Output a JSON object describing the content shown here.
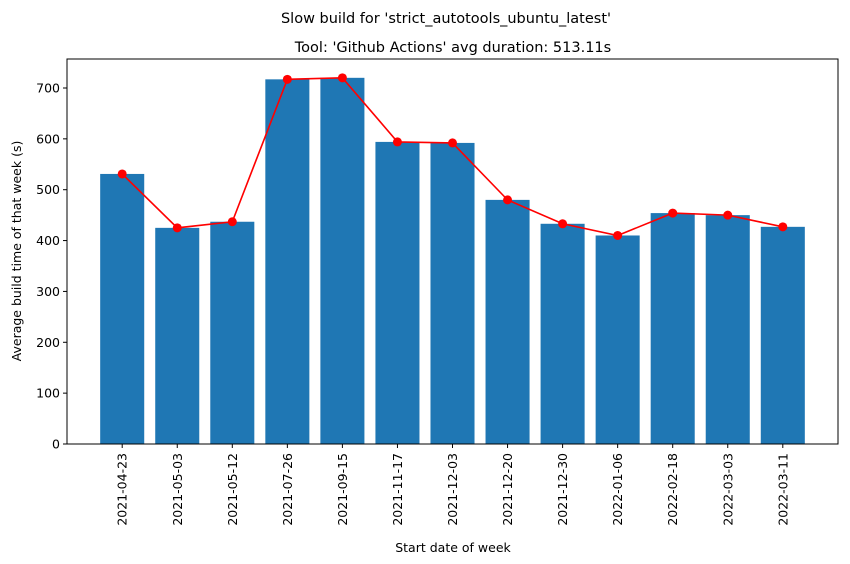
{
  "chart_data": {
    "type": "bar",
    "suptitle": "Slow build for 'strict_autotools_ubuntu_latest'",
    "title": "Tool: 'Github Actions' avg duration: 513.11s",
    "xlabel": "Start date of week",
    "ylabel": "Average build time of that week (s)",
    "categories": [
      "2021-04-23",
      "2021-05-03",
      "2021-05-12",
      "2021-07-26",
      "2021-09-15",
      "2021-11-17",
      "2021-12-03",
      "2021-12-20",
      "2021-12-30",
      "2022-01-06",
      "2022-02-18",
      "2022-03-03",
      "2022-03-11"
    ],
    "series": [
      {
        "type": "bar",
        "color": "#1f77b4",
        "values": [
          531,
          425,
          437,
          717,
          720,
          594,
          592,
          480,
          433,
          410,
          454,
          450,
          427
        ]
      },
      {
        "type": "line",
        "color": "#ff0000",
        "marker": "circle",
        "values": [
          531,
          425,
          437,
          717,
          720,
          594,
          592,
          480,
          433,
          410,
          454,
          450,
          427
        ]
      }
    ],
    "ylim": [
      0,
      757
    ],
    "yticks": [
      0,
      100,
      200,
      300,
      400,
      500,
      600,
      700
    ],
    "grid": false,
    "legend": "none"
  }
}
